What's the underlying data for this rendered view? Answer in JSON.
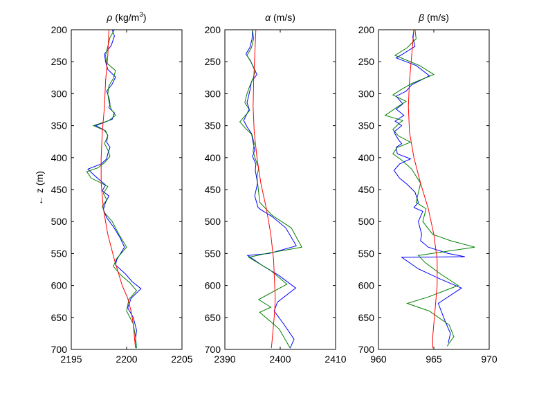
{
  "ylabel": "← z (m)",
  "chart_data": [
    {
      "type": "line",
      "title_symbol": "ρ",
      "title_unit": " (kg/m",
      "title_sup": "3",
      "title_close": ")",
      "xlim": [
        2195,
        2205
      ],
      "ylim": [
        200,
        700
      ],
      "y_reversed": true,
      "xticks": [
        "2195",
        "2200",
        "2205"
      ],
      "yticks": [
        "200",
        "250",
        "300",
        "350",
        "400",
        "450",
        "500",
        "550",
        "600",
        "650",
        "700"
      ],
      "grid": false,
      "series": [
        {
          "color": "#0000ff",
          "x": [
            2198.7,
            2198.9,
            2198.6,
            2198.0,
            2198.1,
            2198.3,
            2199.0,
            2198.7,
            2198.2,
            2198.4,
            2198.5,
            2198.4,
            2198.9,
            2198.7,
            2197.2,
            2198.0,
            2198.3,
            2198.2,
            2198.5,
            2198.3,
            2198.2,
            2197.7,
            2196.5,
            2197.1,
            2198.1,
            2197.8,
            2198.4,
            2198.1,
            2197.9,
            2198.2,
            2198.8,
            2199.4,
            2199.8,
            2199.1,
            2199.0,
            2199.9,
            2200.5,
            2201.3,
            2200.4,
            2200.1,
            2200.6,
            2200.9,
            2200.8,
            2200.9
          ],
          "y": [
            200,
            210,
            225,
            238,
            250,
            262,
            274,
            285,
            296,
            306,
            316,
            322,
            330,
            340,
            350,
            357,
            365,
            376,
            384,
            394,
            402,
            410,
            418,
            428,
            443,
            452,
            460,
            470,
            481,
            494,
            508,
            525,
            540,
            560,
            568,
            582,
            594,
            605,
            620,
            635,
            650,
            670,
            685,
            698
          ]
        },
        {
          "color": "#008000",
          "x": [
            2198.9,
            2198.5,
            2198.3,
            2198.1,
            2198.2,
            2199.0,
            2198.8,
            2198.4,
            2198.3,
            2198.4,
            2198.6,
            2199.0,
            2198.4,
            2197.0,
            2198.1,
            2198.3,
            2198.0,
            2198.3,
            2198.5,
            2198.0,
            2197.4,
            2196.4,
            2196.8,
            2198.3,
            2197.9,
            2198.2,
            2197.8,
            2198.0,
            2198.7,
            2199.3,
            2200.0,
            2199.1,
            2198.8,
            2199.5,
            2200.3,
            2200.9,
            2200.2,
            2200.0,
            2200.6,
            2200.8,
            2200.9
          ],
          "y": [
            200,
            212,
            226,
            240,
            252,
            264,
            276,
            288,
            300,
            312,
            324,
            334,
            342,
            350,
            358,
            366,
            378,
            388,
            398,
            408,
            416,
            422,
            432,
            445,
            456,
            466,
            476,
            486,
            500,
            520,
            540,
            558,
            570,
            584,
            596,
            608,
            622,
            640,
            660,
            680,
            698
          ]
        },
        {
          "color": "#ff0000",
          "x": [
            2198.4,
            2198.3,
            2198.1,
            2198.0,
            2197.8,
            2197.7,
            2197.7,
            2197.9,
            2198.3,
            2198.9,
            2199.6,
            2200.1,
            2200.4,
            2200.6,
            2200.7,
            2200.8
          ],
          "y": [
            200,
            240,
            280,
            320,
            360,
            400,
            440,
            480,
            520,
            560,
            600,
            620,
            640,
            660,
            680,
            698
          ]
        }
      ]
    },
    {
      "type": "line",
      "title_symbol": "α",
      "title_unit": " (m/s)",
      "title_sup": "",
      "title_close": "",
      "xlim": [
        2390,
        2410
      ],
      "ylim": [
        200,
        700
      ],
      "y_reversed": true,
      "xticks": [
        "2390",
        "2400",
        "2410"
      ],
      "yticks": [
        "200",
        "250",
        "300",
        "350",
        "400",
        "450",
        "500",
        "550",
        "600",
        "650",
        "700"
      ],
      "grid": false,
      "series": [
        {
          "color": "#0000ff",
          "x": [
            2395.0,
            2394.9,
            2394.5,
            2393.8,
            2394.6,
            2395.1,
            2395.8,
            2394.8,
            2394.6,
            2394.3,
            2394.0,
            2394.4,
            2393.4,
            2394.0,
            2394.8,
            2395.1,
            2395.4,
            2395.0,
            2395.6,
            2395.5,
            2395.9,
            2395.4,
            2396.0,
            2396.6,
            2398.5,
            2401.0,
            2402.9,
            2398.0,
            2394.1,
            2397.0,
            2399.7,
            2402.8,
            2399.5,
            2398.9,
            2400.6,
            2402.5,
            2401.8
          ],
          "y": [
            200,
            215,
            228,
            238,
            248,
            258,
            270,
            281,
            292,
            303,
            314,
            324,
            342,
            352,
            362,
            376,
            388,
            398,
            410,
            420,
            440,
            460,
            478,
            482,
            492,
            510,
            538,
            550,
            553,
            570,
            584,
            604,
            626,
            640,
            660,
            684,
            698
          ]
        },
        {
          "color": "#008000",
          "x": [
            2395.0,
            2395.2,
            2394.8,
            2394.0,
            2394.8,
            2395.5,
            2395.1,
            2394.5,
            2394.0,
            2393.6,
            2394.5,
            2392.7,
            2393.7,
            2394.9,
            2395.3,
            2395.1,
            2395.5,
            2396.1,
            2395.8,
            2396.3,
            2398.5,
            2402.0,
            2403.9,
            2397.5,
            2394.3,
            2398.2,
            2401.2,
            2396.1,
            2398.3,
            2396.3,
            2399.8,
            2401.8
          ],
          "y": [
            200,
            214,
            228,
            240,
            252,
            264,
            276,
            288,
            300,
            314,
            326,
            344,
            354,
            364,
            378,
            390,
            402,
            416,
            430,
            470,
            490,
            510,
            540,
            550,
            556,
            576,
            598,
            622,
            634,
            642,
            668,
            698
          ]
        },
        {
          "color": "#ff0000",
          "x": [
            2395.6,
            2395.4,
            2395.2,
            2395.1,
            2395.3,
            2395.8,
            2396.5,
            2397.5,
            2398.3,
            2398.8,
            2399.0,
            2399.1,
            2399.0,
            2398.8,
            2398.6,
            2398.4
          ],
          "y": [
            200,
            240,
            280,
            320,
            360,
            400,
            440,
            480,
            520,
            560,
            600,
            620,
            640,
            660,
            680,
            698
          ]
        }
      ]
    },
    {
      "type": "line",
      "title_symbol": "β",
      "title_unit": " (m/s)",
      "title_sup": "",
      "title_close": "",
      "xlim": [
        960,
        970
      ],
      "ylim": [
        200,
        700
      ],
      "y_reversed": true,
      "xticks": [
        "960",
        "965",
        "970"
      ],
      "yticks": [
        "200",
        "250",
        "300",
        "350",
        "400",
        "450",
        "500",
        "550",
        "600",
        "650",
        "700"
      ],
      "grid": false,
      "series": [
        {
          "color": "#0000ff",
          "x": [
            963.2,
            963.1,
            963.3,
            962.2,
            961.6,
            963.4,
            964.6,
            963.0,
            962.5,
            961.6,
            962.2,
            961.6,
            962.3,
            961.5,
            962.1,
            961.4,
            961.8,
            962.1,
            961.6,
            961.7,
            962.9,
            961.9,
            961.4,
            961.9,
            962.6,
            963.3,
            963.6,
            963.2,
            964.0,
            963.6,
            963.9,
            963.8,
            964.5,
            966.3,
            967.8,
            962.1,
            963.6,
            965.6,
            967.5,
            965.4,
            966.0,
            966.5,
            966.3
          ],
          "y": [
            200,
            212,
            226,
            238,
            244,
            256,
            272,
            286,
            296,
            304,
            316,
            324,
            334,
            343,
            350,
            360,
            372,
            378,
            384,
            394,
            402,
            410,
            420,
            432,
            442,
            454,
            470,
            478,
            484,
            500,
            520,
            530,
            540,
            550,
            555,
            556,
            574,
            590,
            604,
            628,
            655,
            675,
            690
          ]
        },
        {
          "color": "#008000",
          "x": [
            963.3,
            963.4,
            962.6,
            961.5,
            963.7,
            965.0,
            963.0,
            962.0,
            961.3,
            962.5,
            961.6,
            960.6,
            962.2,
            961.9,
            961.3,
            961.8,
            962.9,
            961.7,
            961.3,
            962.1,
            963.0,
            963.8,
            963.4,
            964.3,
            964.0,
            964.9,
            966.5,
            968.7,
            963.6,
            964.2,
            965.6,
            967.2,
            964.5,
            962.6,
            964.6,
            966.4,
            966.8,
            966.2
          ],
          "y": [
            200,
            214,
            228,
            240,
            256,
            270,
            284,
            294,
            302,
            312,
            322,
            334,
            342,
            346,
            356,
            366,
            376,
            384,
            394,
            404,
            418,
            440,
            470,
            480,
            500,
            520,
            530,
            540,
            553,
            564,
            582,
            600,
            618,
            628,
            640,
            662,
            680,
            695
          ]
        },
        {
          "color": "#ff0000",
          "x": [
            963.2,
            963.0,
            962.8,
            962.7,
            962.8,
            963.2,
            963.8,
            964.5,
            965.0,
            965.3,
            965.3,
            965.2,
            965.1,
            965.0,
            964.9,
            964.9
          ],
          "y": [
            200,
            240,
            280,
            320,
            360,
            400,
            440,
            480,
            520,
            560,
            600,
            620,
            640,
            660,
            680,
            698
          ]
        }
      ]
    }
  ]
}
